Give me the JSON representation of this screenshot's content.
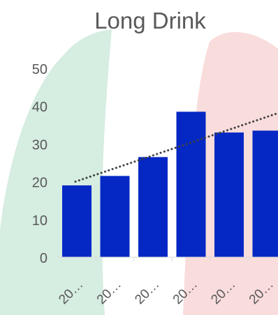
{
  "chart_data": {
    "type": "bar",
    "title": "Long Drink",
    "categories": [
      "20…",
      "20…",
      "20…",
      "20…",
      "20…",
      "20…"
    ],
    "values": [
      19,
      21.5,
      26.5,
      38.5,
      33,
      33.5
    ],
    "trendline": {
      "type": "linear",
      "style": "dotted"
    },
    "ylim": [
      0,
      50
    ],
    "yticks": [
      "0",
      "10",
      "20",
      "30",
      "40",
      "50"
    ],
    "xlabel": "",
    "ylabel": "",
    "grid": false,
    "colors": {
      "bar": "#0528c4",
      "trendline": "#404040",
      "background_blob_left": "#d6ede1",
      "background_blob_right": "#f9dcdc",
      "text": "#595959"
    }
  }
}
